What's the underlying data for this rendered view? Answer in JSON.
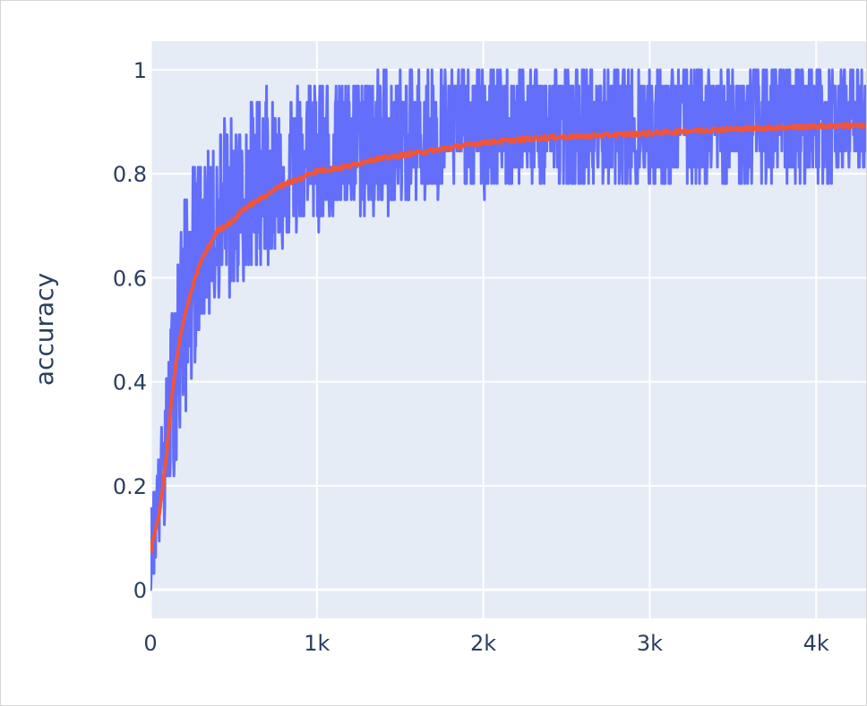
{
  "chart_data": {
    "type": "line",
    "title": "",
    "xlabel": "",
    "ylabel": "accuracy",
    "xlim": [
      0,
      4300
    ],
    "ylim": [
      -0.055,
      1.055
    ],
    "x_ticks": [
      0,
      1000,
      2000,
      3000,
      4000
    ],
    "x_tick_labels": [
      "0",
      "1k",
      "2k",
      "3k",
      "4k"
    ],
    "y_ticks": [
      0,
      0.2,
      0.4,
      0.6,
      0.8,
      1
    ],
    "y_tick_labels": [
      "0",
      "0.2",
      "0.4",
      "0.6",
      "0.8",
      "1"
    ],
    "grid": true,
    "legend": "none",
    "series": [
      {
        "color": "#636efa",
        "style": "noisy per-step values (quantized to multiples of 1/32)",
        "x": [
          0,
          25,
          50,
          75,
          100,
          125,
          150,
          175,
          200,
          250,
          300,
          350,
          400,
          450,
          500,
          550,
          600,
          650,
          700,
          750,
          800,
          900,
          1000,
          1100,
          1200,
          1300,
          1400,
          1500,
          1600,
          1700,
          1800,
          1900,
          2000,
          2200,
          2400,
          2600,
          2800,
          3000,
          3200,
          3400,
          3600,
          3800,
          4000,
          4200,
          4300
        ],
        "values": [
          0.06,
          0.12,
          0.19,
          0.25,
          0.31,
          0.38,
          0.44,
          0.5,
          0.53,
          0.59,
          0.62,
          0.66,
          0.69,
          0.72,
          0.72,
          0.75,
          0.75,
          0.75,
          0.78,
          0.78,
          0.78,
          0.81,
          0.81,
          0.81,
          0.84,
          0.84,
          0.84,
          0.84,
          0.84,
          0.88,
          0.88,
          0.88,
          0.88,
          0.88,
          0.88,
          0.88,
          0.88,
          0.88,
          0.91,
          0.91,
          0.88,
          0.91,
          0.91,
          0.91,
          0.88
        ],
        "spread_low": [
          0.0,
          0.03,
          0.06,
          0.09,
          0.16,
          0.19,
          0.22,
          0.25,
          0.31,
          0.41,
          0.5,
          0.53,
          0.56,
          0.56,
          0.56,
          0.59,
          0.59,
          0.62,
          0.62,
          0.66,
          0.66,
          0.69,
          0.69,
          0.72,
          0.72,
          0.72,
          0.72,
          0.75,
          0.75,
          0.75,
          0.75,
          0.78,
          0.75,
          0.78,
          0.78,
          0.78,
          0.78,
          0.78,
          0.78,
          0.78,
          0.78,
          0.78,
          0.78,
          0.81,
          0.81
        ],
        "spread_high": [
          0.16,
          0.22,
          0.28,
          0.34,
          0.44,
          0.53,
          0.62,
          0.69,
          0.75,
          0.81,
          0.84,
          0.84,
          0.88,
          0.91,
          0.91,
          0.91,
          0.94,
          0.97,
          0.97,
          0.94,
          0.94,
          0.97,
          1.0,
          0.97,
          0.97,
          1.0,
          1.0,
          1.0,
          1.0,
          1.0,
          1.0,
          1.0,
          1.0,
          1.0,
          1.0,
          1.0,
          1.0,
          1.0,
          1.0,
          1.0,
          1.0,
          1.0,
          1.0,
          1.0,
          1.0
        ]
      },
      {
        "color": "#ef553b",
        "style": "smoothed running average",
        "x": [
          0,
          25,
          50,
          75,
          100,
          125,
          150,
          175,
          200,
          250,
          300,
          350,
          400,
          450,
          500,
          550,
          600,
          650,
          700,
          750,
          800,
          850,
          900,
          950,
          1000,
          1100,
          1200,
          1300,
          1400,
          1500,
          1600,
          1700,
          1800,
          1900,
          2000,
          2200,
          2400,
          2600,
          2800,
          3000,
          3200,
          3400,
          3600,
          3800,
          4000,
          4200,
          4300
        ],
        "values": [
          0.07,
          0.11,
          0.14,
          0.2,
          0.27,
          0.36,
          0.43,
          0.48,
          0.52,
          0.58,
          0.63,
          0.66,
          0.69,
          0.7,
          0.71,
          0.73,
          0.74,
          0.75,
          0.76,
          0.77,
          0.78,
          0.785,
          0.79,
          0.8,
          0.805,
          0.81,
          0.815,
          0.825,
          0.83,
          0.835,
          0.84,
          0.845,
          0.85,
          0.855,
          0.86,
          0.865,
          0.87,
          0.872,
          0.875,
          0.878,
          0.882,
          0.885,
          0.887,
          0.889,
          0.891,
          0.893,
          0.891
        ]
      }
    ]
  }
}
